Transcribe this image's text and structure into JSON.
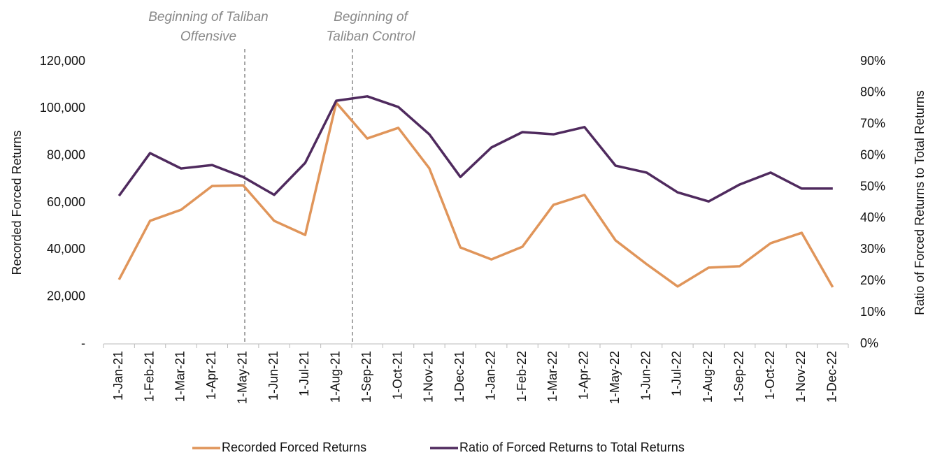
{
  "chart_data": {
    "type": "line",
    "categories": [
      "1-Jan-21",
      "1-Feb-21",
      "1-Mar-21",
      "1-Apr-21",
      "1-May-21",
      "1-Jun-21",
      "1-Jul-21",
      "1-Aug-21",
      "1-Sep-21",
      "1-Oct-21",
      "1-Nov-21",
      "1-Dec-21",
      "1-Jan-22",
      "1-Feb-22",
      "1-Mar-22",
      "1-Apr-22",
      "1-May-22",
      "1-Jun-22",
      "1-Jul-22",
      "1-Aug-22",
      "1-Sep-22",
      "1-Oct-22",
      "1-Nov-22",
      "1-Dec-22"
    ],
    "series": [
      {
        "name": "Recorded Forced Returns",
        "color": "#e0955a",
        "values": [
          27300,
          52300,
          57000,
          67100,
          67400,
          52300,
          46300,
          102500,
          87300,
          91800,
          74600,
          41000,
          35900,
          41300,
          59100,
          63300,
          44000,
          33900,
          24400,
          32400,
          33000,
          42800,
          47200,
          24100
        ]
      },
      {
        "name": "Ratio of Forced Returns to Total Returns",
        "color": "#4f2a5e",
        "axis": "y2",
        "values": [
          47.2,
          60.8,
          55.9,
          57.0,
          53.2,
          47.5,
          57.7,
          77.5,
          78.9,
          75.5,
          66.8,
          53.2,
          62.6,
          67.5,
          66.8,
          69.1,
          56.8,
          54.6,
          48.3,
          45.4,
          50.8,
          54.6,
          49.5,
          49.5
        ]
      }
    ],
    "ylabel": "Recorded Forced Returns",
    "y2label": "Ratio of Forced Returns to Total Returns",
    "ylim": [
      0,
      120000
    ],
    "yticks": [
      {
        "value": 0,
        "label": "-"
      },
      {
        "value": 20000,
        "label": "20,000"
      },
      {
        "value": 40000,
        "label": "40,000"
      },
      {
        "value": 60000,
        "label": "60,000"
      },
      {
        "value": 80000,
        "label": "80,000"
      },
      {
        "value": 100000,
        "label": "100,000"
      },
      {
        "value": 120000,
        "label": "120,000"
      }
    ],
    "y2lim": [
      0,
      90
    ],
    "y2ticks": [
      {
        "value": 0,
        "label": "0%"
      },
      {
        "value": 10,
        "label": "10%"
      },
      {
        "value": 20,
        "label": "20%"
      },
      {
        "value": 30,
        "label": "30%"
      },
      {
        "value": 40,
        "label": "40%"
      },
      {
        "value": 50,
        "label": "50%"
      },
      {
        "value": 60,
        "label": "60%"
      },
      {
        "value": 70,
        "label": "70%"
      },
      {
        "value": 80,
        "label": "80%"
      },
      {
        "value": 90,
        "label": "90%"
      }
    ],
    "annotations": [
      {
        "lines": [
          "Beginning of Taliban",
          "Offensive"
        ]
      },
      {
        "lines": [
          "Beginning of",
          "Taliban Control"
        ]
      }
    ],
    "legend": "bottom"
  }
}
